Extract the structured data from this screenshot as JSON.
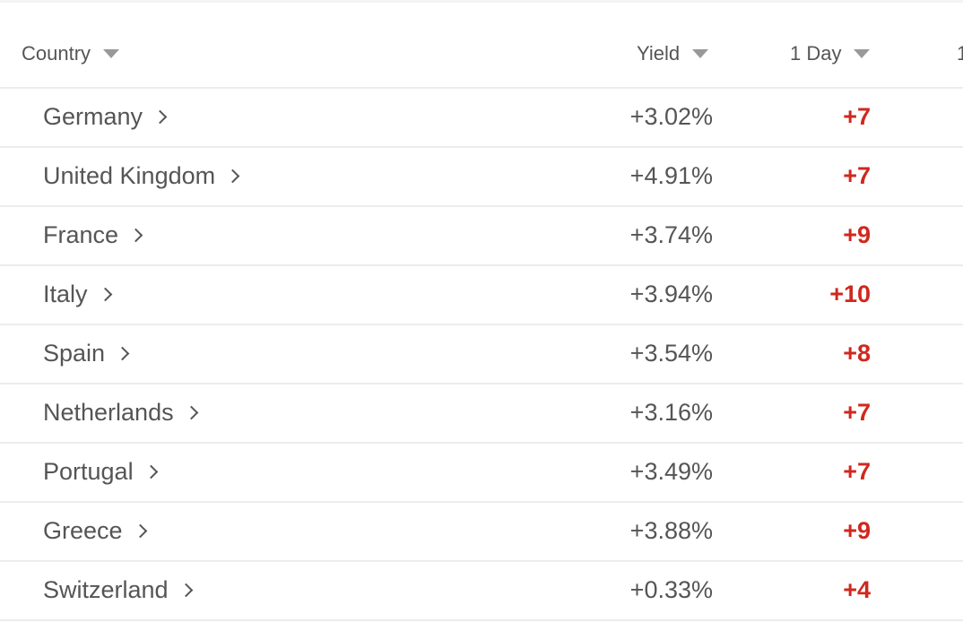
{
  "columns": {
    "country": "Country",
    "yield": "Yield",
    "day1": "1 Day",
    "next_partial": "1"
  },
  "colors": {
    "negative_change": "#d0281e",
    "text": "#555555"
  },
  "rows": [
    {
      "country": "Germany",
      "yield": "+3.02%",
      "day1": "+7"
    },
    {
      "country": "United Kingdom",
      "yield": "+4.91%",
      "day1": "+7"
    },
    {
      "country": "France",
      "yield": "+3.74%",
      "day1": "+9"
    },
    {
      "country": "Italy",
      "yield": "+3.94%",
      "day1": "+10"
    },
    {
      "country": "Spain",
      "yield": "+3.54%",
      "day1": "+8"
    },
    {
      "country": "Netherlands",
      "yield": "+3.16%",
      "day1": "+7"
    },
    {
      "country": "Portugal",
      "yield": "+3.49%",
      "day1": "+7"
    },
    {
      "country": "Greece",
      "yield": "+3.88%",
      "day1": "+9"
    },
    {
      "country": "Switzerland",
      "yield": "+0.33%",
      "day1": "+4"
    }
  ]
}
